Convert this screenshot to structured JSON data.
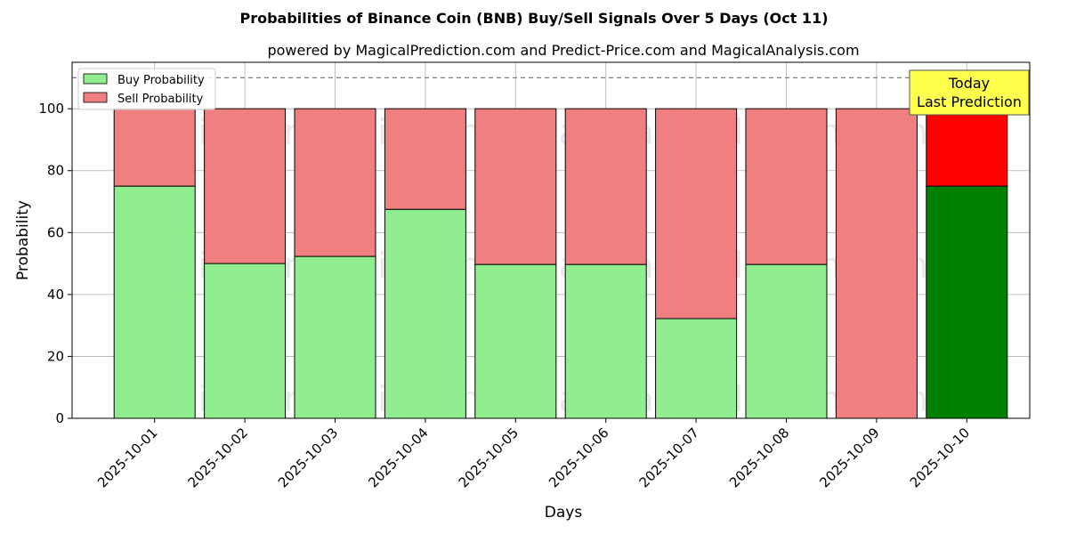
{
  "chart_data": {
    "type": "bar",
    "stacked": true,
    "title": "Probabilities of Binance Coin (BNB) Buy/Sell Signals Over 5 Days (Oct 11)",
    "subtitle": "powered by MagicalPrediction.com and Predict-Price.com and MagicalAnalysis.com",
    "xlabel": "Days",
    "ylabel": "Probability",
    "ylim": [
      0,
      115
    ],
    "yticks": [
      0,
      20,
      40,
      60,
      80,
      100
    ],
    "grid": true,
    "legend_position": "top-left",
    "reference_line": 110,
    "categories": [
      "2025-10-01",
      "2025-10-02",
      "2025-10-03",
      "2025-10-04",
      "2025-10-05",
      "2025-10-06",
      "2025-10-07",
      "2025-10-08",
      "2025-10-09",
      "2025-10-10"
    ],
    "series": [
      {
        "name": "Buy Probability",
        "values": [
          75,
          50,
          52.3,
          67.5,
          49.7,
          49.7,
          32.2,
          49.7,
          0,
          75
        ]
      },
      {
        "name": "Sell Probability",
        "values": [
          25,
          50,
          47.7,
          32.5,
          50.3,
          50.3,
          67.8,
          50.3,
          100,
          25
        ]
      }
    ],
    "colors": {
      "buy": "#90ee90",
      "sell": "#f08080",
      "buy_highlight": "#008000",
      "sell_highlight": "#ff0000",
      "annotation_bg": "#ffff4d"
    },
    "highlight_index": 9,
    "annotation": {
      "lines": [
        "Today",
        "Last Prediction"
      ]
    },
    "watermarks": [
      "MagicalAnalysis.com",
      "MagicalPrediction.com"
    ]
  }
}
